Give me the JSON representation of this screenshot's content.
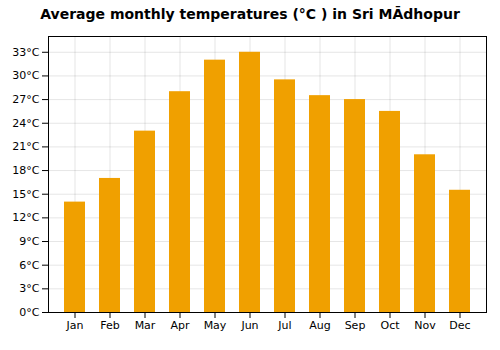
{
  "chart_data": {
    "type": "bar",
    "title": "Average monthly temperatures (°C ) in Sri MĀdhopur",
    "categories": [
      "Jan",
      "Feb",
      "Mar",
      "Apr",
      "May",
      "Jun",
      "Jul",
      "Aug",
      "Sep",
      "Oct",
      "Nov",
      "Dec"
    ],
    "values": [
      14,
      17,
      23,
      28,
      32,
      33,
      29.5,
      27.5,
      27,
      25.5,
      20,
      15.5
    ],
    "color": "#F0A000",
    "ylim": [
      0,
      35
    ],
    "yticks": [
      {
        "value": 0,
        "label": "0°C"
      },
      {
        "value": 3,
        "label": "3°C"
      },
      {
        "value": 6,
        "label": "6°C"
      },
      {
        "value": 9,
        "label": "9°C"
      },
      {
        "value": 12,
        "label": "12°C"
      },
      {
        "value": 15,
        "label": "15°C"
      },
      {
        "value": 18,
        "label": "18°C"
      },
      {
        "value": 21,
        "label": "21°C"
      },
      {
        "value": 24,
        "label": "24°C"
      },
      {
        "value": 27,
        "label": "27°C"
      },
      {
        "value": 30,
        "label": "30°C"
      },
      {
        "value": 33,
        "label": "33°C"
      }
    ],
    "grid": true
  }
}
